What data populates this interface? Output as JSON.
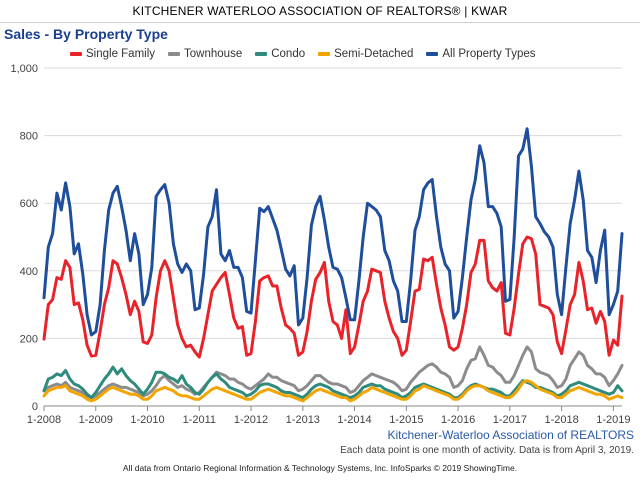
{
  "header": "KITCHENER WATERLOO ASSOCIATION OF REALTORS® | KWAR",
  "source": "Kitchener-Waterloo Association of REALTORS",
  "note": "Each data point is one month of activity. Data is from April 3, 2019.",
  "footer": "All data from Ontario Regional Information & Technology Systems, Inc. InfoSparks © 2019 ShowingTime.",
  "chart_data": {
    "type": "line",
    "title": "Sales - By Property Type",
    "xlabel": "",
    "ylabel": "",
    "ylim": [
      0,
      1000
    ],
    "yticks": [
      0,
      200,
      400,
      600,
      800,
      1000
    ],
    "ytick_labels": [
      "0",
      "200",
      "400",
      "600",
      "800",
      "1,000"
    ],
    "xticks": [
      "1-2008",
      "1-2009",
      "1-2010",
      "1-2011",
      "1-2012",
      "1-2013",
      "1-2014",
      "1-2015",
      "1-2016",
      "1-2017",
      "1-2018",
      "1-2019"
    ],
    "x_start": "1-2008",
    "x_end": "3-2019",
    "grid": true,
    "legend_position": "top",
    "series": [
      {
        "name": "Single Family",
        "color": "#e8232a",
        "values": [
          198,
          300,
          315,
          380,
          375,
          430,
          410,
          300,
          305,
          255,
          180,
          148,
          150,
          220,
          300,
          350,
          430,
          420,
          380,
          330,
          270,
          310,
          280,
          190,
          185,
          210,
          320,
          400,
          430,
          400,
          320,
          240,
          200,
          175,
          180,
          160,
          145,
          200,
          270,
          340,
          360,
          380,
          395,
          330,
          260,
          230,
          235,
          150,
          155,
          250,
          370,
          380,
          385,
          355,
          355,
          290,
          240,
          230,
          215,
          150,
          160,
          220,
          310,
          375,
          395,
          425,
          310,
          250,
          240,
          200,
          285,
          155,
          175,
          240,
          310,
          340,
          405,
          400,
          395,
          310,
          260,
          220,
          200,
          150,
          165,
          250,
          340,
          345,
          435,
          430,
          440,
          360,
          290,
          240,
          175,
          165,
          175,
          230,
          300,
          395,
          420,
          490,
          490,
          370,
          350,
          340,
          365,
          215,
          210,
          290,
          390,
          480,
          500,
          495,
          450,
          300,
          295,
          290,
          270,
          190,
          155,
          225,
          300,
          330,
          425,
          370,
          285,
          290,
          245,
          280,
          250,
          150,
          195,
          180,
          325
        ]
      },
      {
        "name": "Townhouse",
        "color": "#8c8c8c",
        "values": [
          45,
          55,
          60,
          65,
          60,
          70,
          55,
          50,
          45,
          40,
          30,
          25,
          30,
          40,
          50,
          60,
          65,
          60,
          55,
          55,
          50,
          45,
          40,
          30,
          35,
          45,
          60,
          80,
          90,
          75,
          65,
          55,
          60,
          50,
          45,
          35,
          40,
          55,
          70,
          85,
          100,
          95,
          90,
          80,
          80,
          70,
          65,
          55,
          50,
          60,
          70,
          80,
          95,
          85,
          85,
          75,
          70,
          65,
          60,
          45,
          50,
          60,
          75,
          90,
          90,
          80,
          70,
          65,
          65,
          60,
          55,
          40,
          45,
          60,
          75,
          85,
          95,
          90,
          85,
          80,
          75,
          70,
          60,
          45,
          50,
          70,
          85,
          100,
          110,
          120,
          125,
          115,
          100,
          95,
          85,
          55,
          60,
          75,
          110,
          135,
          140,
          175,
          150,
          120,
          115,
          100,
          90,
          70,
          70,
          90,
          120,
          150,
          175,
          160,
          110,
          100,
          95,
          90,
          75,
          55,
          60,
          80,
          120,
          140,
          160,
          150,
          120,
          110,
          95,
          95,
          85,
          60,
          75,
          95,
          120
        ]
      },
      {
        "name": "Condo",
        "color": "#2e8b7d",
        "values": [
          45,
          80,
          85,
          95,
          90,
          105,
          80,
          65,
          60,
          50,
          35,
          25,
          40,
          60,
          80,
          95,
          115,
          95,
          110,
          90,
          75,
          65,
          50,
          35,
          50,
          70,
          100,
          100,
          95,
          85,
          80,
          70,
          90,
          65,
          55,
          40,
          35,
          50,
          70,
          85,
          95,
          80,
          70,
          55,
          50,
          45,
          40,
          30,
          35,
          45,
          60,
          65,
          65,
          60,
          55,
          45,
          40,
          40,
          35,
          30,
          25,
          35,
          50,
          60,
          65,
          60,
          55,
          45,
          40,
          35,
          30,
          25,
          30,
          40,
          55,
          60,
          65,
          60,
          60,
          50,
          45,
          40,
          35,
          25,
          30,
          40,
          55,
          60,
          65,
          60,
          55,
          50,
          45,
          40,
          35,
          25,
          25,
          35,
          50,
          60,
          65,
          60,
          55,
          50,
          50,
          45,
          40,
          30,
          30,
          45,
          60,
          75,
          70,
          65,
          55,
          55,
          50,
          45,
          40,
          30,
          35,
          45,
          60,
          65,
          70,
          65,
          60,
          55,
          50,
          45,
          40,
          35,
          40,
          60,
          45
        ]
      },
      {
        "name": "Semi-Detached",
        "color": "#f2a500",
        "values": [
          30,
          45,
          50,
          55,
          55,
          60,
          45,
          40,
          35,
          30,
          20,
          15,
          20,
          30,
          40,
          50,
          55,
          50,
          45,
          40,
          35,
          35,
          30,
          20,
          20,
          30,
          45,
          50,
          55,
          50,
          45,
          35,
          30,
          30,
          25,
          20,
          20,
          30,
          40,
          50,
          55,
          50,
          45,
          40,
          35,
          30,
          25,
          20,
          20,
          30,
          40,
          45,
          50,
          45,
          40,
          35,
          30,
          30,
          25,
          20,
          15,
          25,
          35,
          45,
          50,
          45,
          40,
          35,
          30,
          25,
          25,
          15,
          20,
          30,
          40,
          45,
          55,
          50,
          45,
          40,
          35,
          30,
          25,
          20,
          20,
          30,
          45,
          50,
          60,
          55,
          50,
          45,
          40,
          35,
          30,
          20,
          20,
          30,
          45,
          55,
          60,
          60,
          55,
          45,
          40,
          35,
          30,
          25,
          25,
          35,
          50,
          70,
          75,
          70,
          60,
          50,
          45,
          40,
          35,
          25,
          25,
          35,
          45,
          50,
          55,
          50,
          45,
          40,
          35,
          35,
          30,
          20,
          25,
          30,
          25
        ]
      },
      {
        "name": "All Property Types",
        "color": "#1f4e9c",
        "values": [
          320,
          470,
          510,
          630,
          580,
          660,
          590,
          450,
          480,
          390,
          270,
          210,
          220,
          300,
          460,
          580,
          630,
          650,
          590,
          520,
          430,
          510,
          450,
          300,
          330,
          410,
          620,
          640,
          655,
          600,
          480,
          420,
          395,
          420,
          400,
          285,
          290,
          390,
          530,
          560,
          640,
          450,
          430,
          460,
          410,
          410,
          380,
          280,
          275,
          430,
          585,
          575,
          590,
          555,
          520,
          465,
          405,
          385,
          415,
          240,
          260,
          380,
          535,
          590,
          620,
          550,
          470,
          410,
          405,
          380,
          320,
          255,
          255,
          370,
          500,
          600,
          590,
          580,
          560,
          460,
          430,
          370,
          340,
          250,
          250,
          370,
          520,
          560,
          640,
          660,
          670,
          560,
          470,
          420,
          400,
          260,
          280,
          380,
          500,
          610,
          670,
          770,
          720,
          590,
          590,
          570,
          530,
          310,
          315,
          500,
          740,
          760,
          820,
          710,
          560,
          540,
          515,
          500,
          470,
          330,
          270,
          410,
          540,
          610,
          695,
          610,
          460,
          440,
          365,
          460,
          520,
          270,
          300,
          340,
          510
        ]
      }
    ]
  }
}
